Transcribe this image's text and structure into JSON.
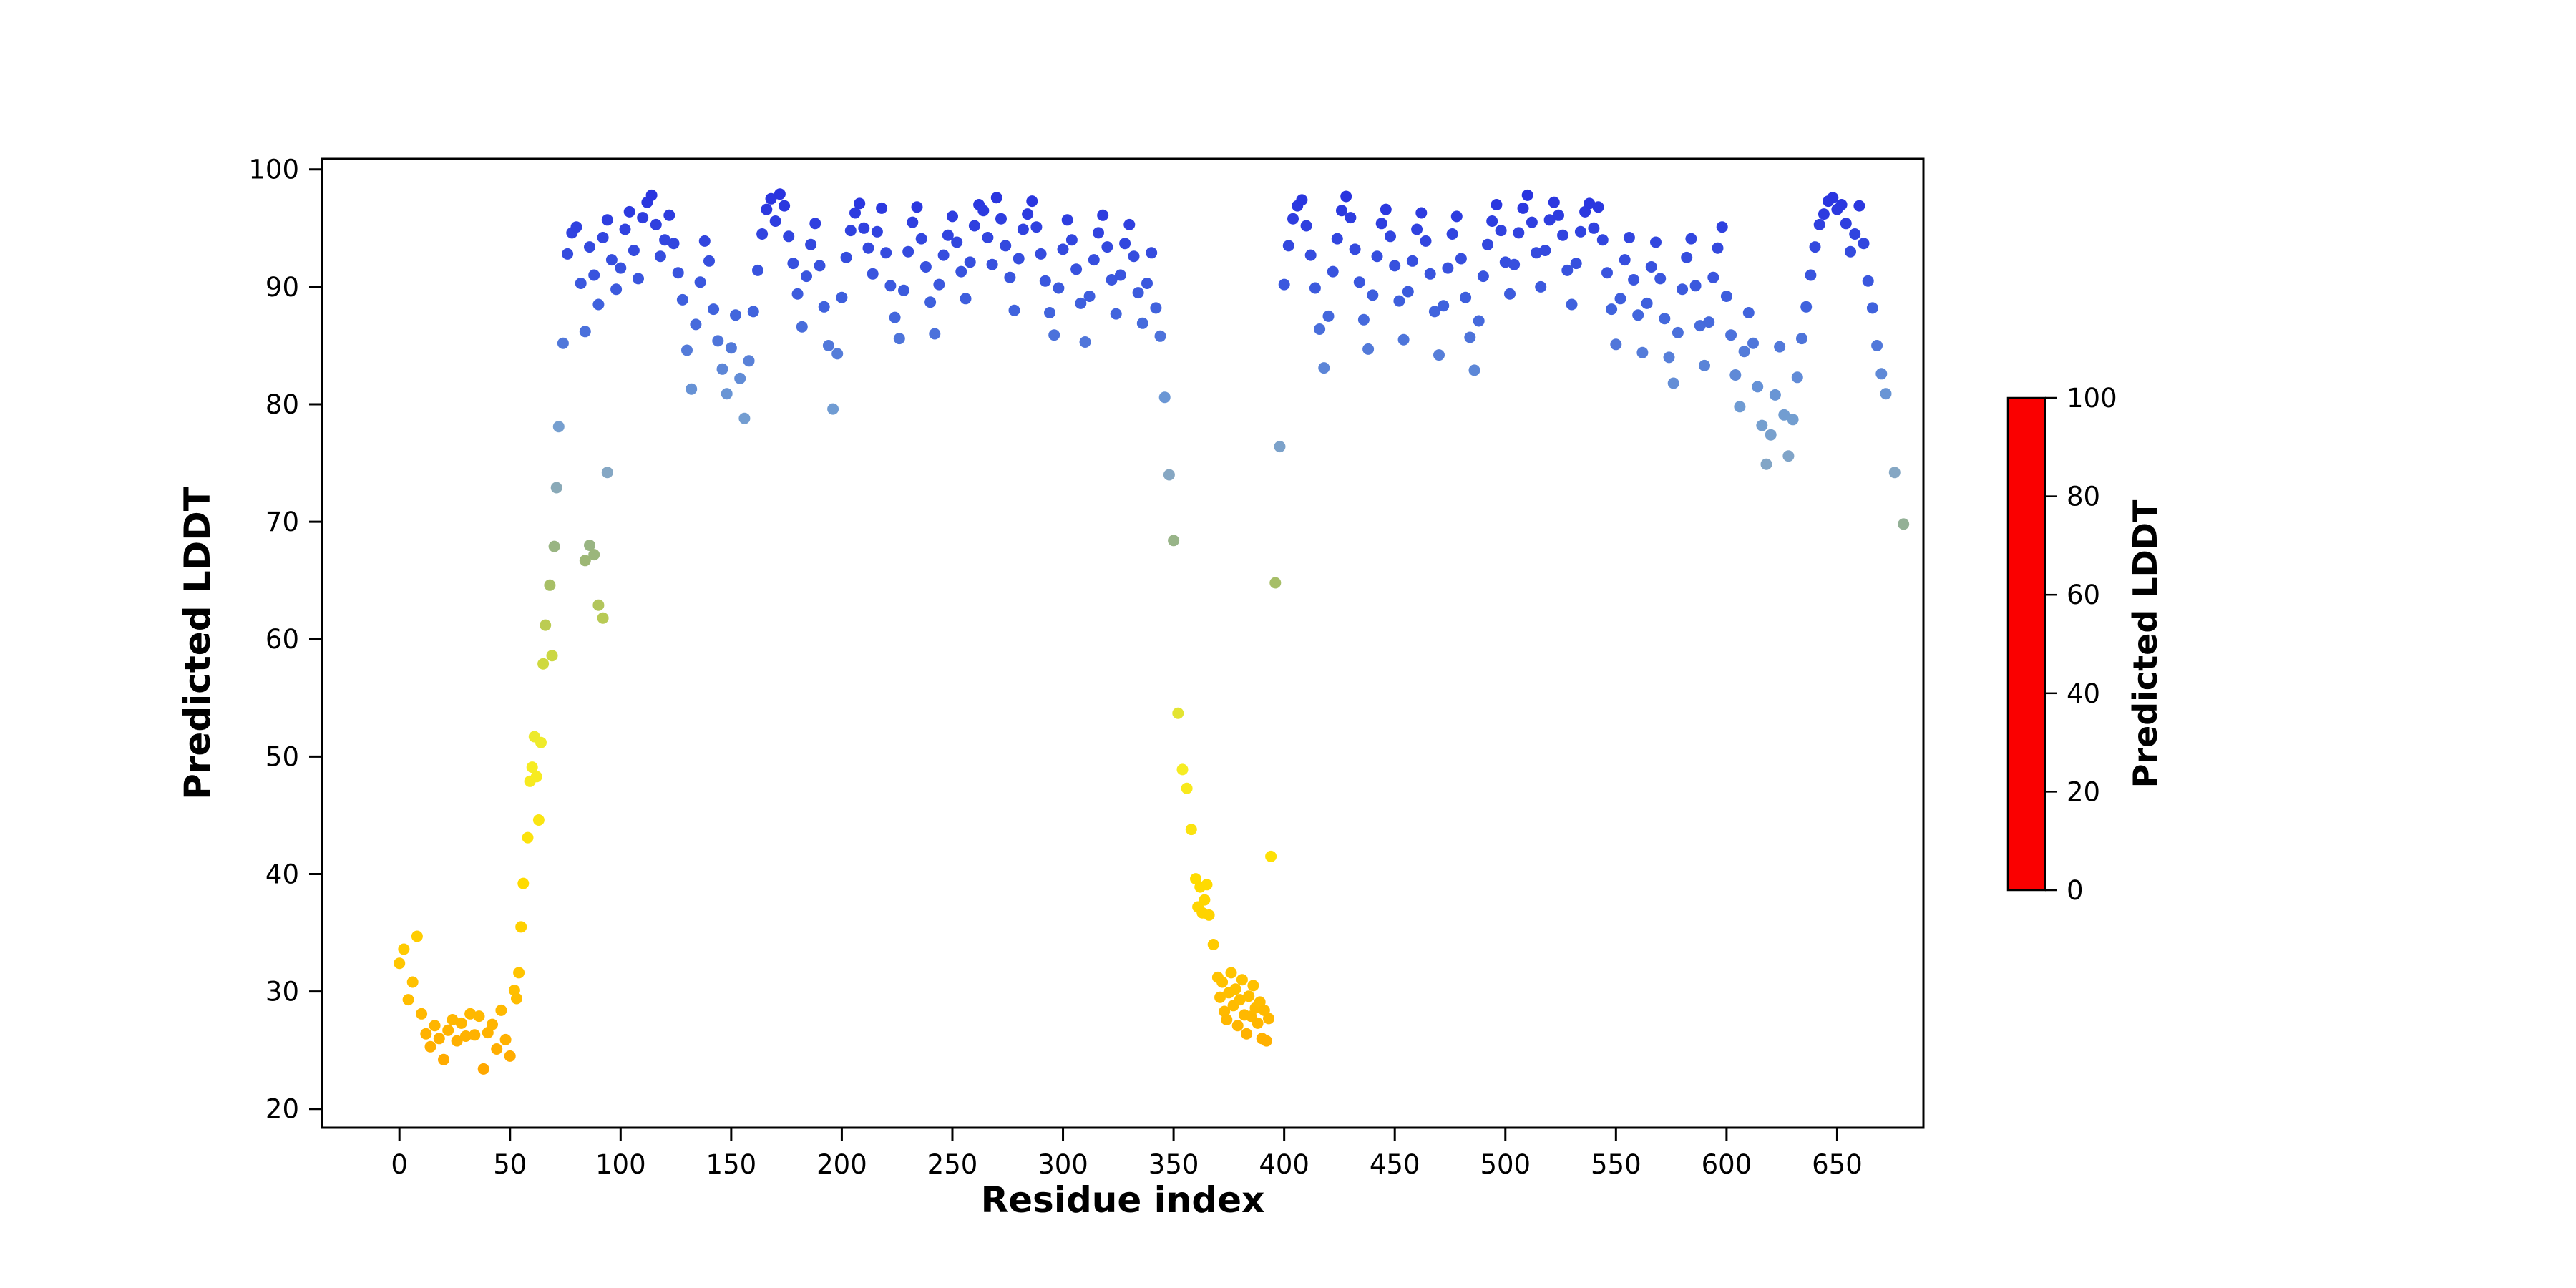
{
  "figure": {
    "background": "#ffffff",
    "spine_color": "#000000",
    "tick_color": "#000000"
  },
  "chart_data": {
    "type": "scatter",
    "title": "",
    "xlabel": "Residue index",
    "ylabel": "Predicted LDDT",
    "xlim": [
      -35,
      689
    ],
    "ylim": [
      18.4,
      100.9
    ],
    "xticks": [
      0,
      50,
      100,
      150,
      200,
      250,
      300,
      350,
      400,
      450,
      500,
      550,
      600,
      650
    ],
    "yticks": [
      20,
      30,
      40,
      50,
      60,
      70,
      80,
      90,
      100
    ],
    "grid": false,
    "legend": "none",
    "marker_size": 8,
    "color_by": "y",
    "colorbar": {
      "label": "Predicted LDDT",
      "ticks": [
        0,
        20,
        40,
        60,
        80,
        100
      ],
      "vmin": 0,
      "vmax": 100,
      "stops": [
        [
          0.0,
          "#fa0000"
        ],
        [
          0.1,
          "#ff5a00"
        ],
        [
          0.2,
          "#ff9c00"
        ],
        [
          0.3,
          "#ffbf00"
        ],
        [
          0.4,
          "#ffdd00"
        ],
        [
          0.5,
          "#f5ee27"
        ],
        [
          0.58,
          "#cfd93f"
        ],
        [
          0.66,
          "#9fb96e"
        ],
        [
          0.74,
          "#86a7c3"
        ],
        [
          0.8,
          "#6e9bd4"
        ],
        [
          0.88,
          "#4063dd"
        ],
        [
          1.0,
          "#2429e0"
        ]
      ]
    },
    "points": [
      [
        0,
        32.4
      ],
      [
        2,
        33.6
      ],
      [
        4,
        29.3
      ],
      [
        6,
        30.8
      ],
      [
        8,
        34.7
      ],
      [
        10,
        28.1
      ],
      [
        12,
        26.4
      ],
      [
        14,
        25.3
      ],
      [
        16,
        27.1
      ],
      [
        18,
        26.0
      ],
      [
        20,
        24.2
      ],
      [
        22,
        26.7
      ],
      [
        24,
        27.6
      ],
      [
        26,
        25.8
      ],
      [
        28,
        27.3
      ],
      [
        30,
        26.2
      ],
      [
        32,
        28.1
      ],
      [
        34,
        26.3
      ],
      [
        36,
        27.9
      ],
      [
        38,
        23.4
      ],
      [
        40,
        26.5
      ],
      [
        42,
        27.2
      ],
      [
        44,
        25.1
      ],
      [
        46,
        28.4
      ],
      [
        48,
        25.9
      ],
      [
        50,
        24.5
      ],
      [
        52,
        30.1
      ],
      [
        53,
        29.4
      ],
      [
        54,
        31.6
      ],
      [
        55,
        35.5
      ],
      [
        56,
        39.2
      ],
      [
        58,
        43.1
      ],
      [
        59,
        47.9
      ],
      [
        60,
        49.1
      ],
      [
        61,
        51.7
      ],
      [
        62,
        48.3
      ],
      [
        63,
        44.6
      ],
      [
        64,
        51.2
      ],
      [
        65,
        57.9
      ],
      [
        66,
        61.2
      ],
      [
        68,
        64.6
      ],
      [
        69,
        58.6
      ],
      [
        70,
        67.9
      ],
      [
        71,
        72.9
      ],
      [
        72,
        78.1
      ],
      [
        74,
        85.2
      ],
      [
        76,
        92.8
      ],
      [
        78,
        94.6
      ],
      [
        80,
        95.1
      ],
      [
        82,
        90.3
      ],
      [
        84,
        86.2
      ],
      [
        84,
        66.7
      ],
      [
        86,
        93.4
      ],
      [
        86,
        68.0
      ],
      [
        88,
        91.0
      ],
      [
        88,
        67.2
      ],
      [
        90,
        88.5
      ],
      [
        90,
        62.9
      ],
      [
        92,
        94.2
      ],
      [
        92,
        61.8
      ],
      [
        94,
        95.7
      ],
      [
        94,
        74.2
      ],
      [
        96,
        92.3
      ],
      [
        98,
        89.8
      ],
      [
        100,
        91.6
      ],
      [
        102,
        94.9
      ],
      [
        104,
        96.4
      ],
      [
        106,
        93.1
      ],
      [
        108,
        90.7
      ],
      [
        110,
        95.9
      ],
      [
        112,
        97.2
      ],
      [
        114,
        97.8
      ],
      [
        116,
        95.3
      ],
      [
        118,
        92.6
      ],
      [
        120,
        94.0
      ],
      [
        122,
        96.1
      ],
      [
        124,
        93.7
      ],
      [
        126,
        91.2
      ],
      [
        128,
        88.9
      ],
      [
        130,
        84.6
      ],
      [
        132,
        81.3
      ],
      [
        134,
        86.8
      ],
      [
        136,
        90.4
      ],
      [
        138,
        93.9
      ],
      [
        140,
        92.2
      ],
      [
        142,
        88.1
      ],
      [
        144,
        85.4
      ],
      [
        146,
        83.0
      ],
      [
        148,
        80.9
      ],
      [
        150,
        84.8
      ],
      [
        152,
        87.6
      ],
      [
        154,
        82.2
      ],
      [
        156,
        78.8
      ],
      [
        158,
        83.7
      ],
      [
        160,
        87.9
      ],
      [
        162,
        91.4
      ],
      [
        164,
        94.5
      ],
      [
        166,
        96.6
      ],
      [
        168,
        97.5
      ],
      [
        170,
        95.6
      ],
      [
        172,
        97.9
      ],
      [
        174,
        96.9
      ],
      [
        176,
        94.3
      ],
      [
        178,
        92.0
      ],
      [
        180,
        89.4
      ],
      [
        182,
        86.6
      ],
      [
        184,
        90.9
      ],
      [
        186,
        93.6
      ],
      [
        188,
        95.4
      ],
      [
        190,
        91.8
      ],
      [
        192,
        88.3
      ],
      [
        194,
        85.0
      ],
      [
        196,
        79.6
      ],
      [
        198,
        84.3
      ],
      [
        200,
        89.1
      ],
      [
        202,
        92.5
      ],
      [
        204,
        94.8
      ],
      [
        206,
        96.3
      ],
      [
        208,
        97.1
      ],
      [
        210,
        95.0
      ],
      [
        212,
        93.3
      ],
      [
        214,
        91.1
      ],
      [
        216,
        94.7
      ],
      [
        218,
        96.7
      ],
      [
        220,
        92.9
      ],
      [
        222,
        90.1
      ],
      [
        224,
        87.4
      ],
      [
        226,
        85.6
      ],
      [
        228,
        89.7
      ],
      [
        230,
        93.0
      ],
      [
        232,
        95.5
      ],
      [
        234,
        96.8
      ],
      [
        236,
        94.1
      ],
      [
        238,
        91.7
      ],
      [
        240,
        88.7
      ],
      [
        242,
        86.0
      ],
      [
        244,
        90.2
      ],
      [
        246,
        92.7
      ],
      [
        248,
        94.4
      ],
      [
        250,
        96.0
      ],
      [
        252,
        93.8
      ],
      [
        254,
        91.3
      ],
      [
        256,
        89.0
      ],
      [
        258,
        92.1
      ],
      [
        260,
        95.2
      ],
      [
        262,
        97.0
      ],
      [
        264,
        96.5
      ],
      [
        266,
        94.2
      ],
      [
        268,
        91.9
      ],
      [
        270,
        97.6
      ],
      [
        272,
        95.8
      ],
      [
        274,
        93.5
      ],
      [
        276,
        90.8
      ],
      [
        278,
        88.0
      ],
      [
        280,
        92.4
      ],
      [
        282,
        94.9
      ],
      [
        284,
        96.2
      ],
      [
        286,
        97.3
      ],
      [
        288,
        95.1
      ],
      [
        290,
        92.8
      ],
      [
        292,
        90.5
      ],
      [
        294,
        87.8
      ],
      [
        296,
        85.9
      ],
      [
        298,
        89.9
      ],
      [
        300,
        93.2
      ],
      [
        302,
        95.7
      ],
      [
        304,
        94.0
      ],
      [
        306,
        91.5
      ],
      [
        308,
        88.6
      ],
      [
        310,
        85.3
      ],
      [
        312,
        89.2
      ],
      [
        314,
        92.3
      ],
      [
        316,
        94.6
      ],
      [
        318,
        96.1
      ],
      [
        320,
        93.4
      ],
      [
        322,
        90.6
      ],
      [
        324,
        87.7
      ],
      [
        326,
        91.0
      ],
      [
        328,
        93.7
      ],
      [
        330,
        95.3
      ],
      [
        332,
        92.6
      ],
      [
        334,
        89.5
      ],
      [
        336,
        86.9
      ],
      [
        338,
        90.3
      ],
      [
        340,
        92.9
      ],
      [
        342,
        88.2
      ],
      [
        344,
        85.8
      ],
      [
        346,
        80.6
      ],
      [
        348,
        74.0
      ],
      [
        350,
        68.4
      ],
      [
        352,
        53.7
      ],
      [
        354,
        48.9
      ],
      [
        356,
        47.3
      ],
      [
        358,
        43.8
      ],
      [
        360,
        39.6
      ],
      [
        361,
        37.2
      ],
      [
        362,
        38.9
      ],
      [
        363,
        36.7
      ],
      [
        364,
        37.8
      ],
      [
        365,
        39.1
      ],
      [
        366,
        36.5
      ],
      [
        368,
        34.0
      ],
      [
        370,
        31.2
      ],
      [
        371,
        29.5
      ],
      [
        372,
        30.8
      ],
      [
        373,
        28.3
      ],
      [
        374,
        27.6
      ],
      [
        375,
        29.9
      ],
      [
        376,
        31.6
      ],
      [
        377,
        28.8
      ],
      [
        378,
        30.2
      ],
      [
        379,
        27.1
      ],
      [
        380,
        29.3
      ],
      [
        381,
        31.0
      ],
      [
        382,
        28.0
      ],
      [
        383,
        26.4
      ],
      [
        384,
        29.6
      ],
      [
        385,
        27.9
      ],
      [
        386,
        30.5
      ],
      [
        387,
        28.6
      ],
      [
        388,
        27.3
      ],
      [
        389,
        29.1
      ],
      [
        390,
        26.0
      ],
      [
        391,
        28.4
      ],
      [
        392,
        25.8
      ],
      [
        393,
        27.7
      ],
      [
        394,
        41.5
      ],
      [
        396,
        64.8
      ],
      [
        398,
        76.4
      ],
      [
        400,
        90.2
      ],
      [
        402,
        93.5
      ],
      [
        404,
        95.8
      ],
      [
        406,
        96.9
      ],
      [
        408,
        97.4
      ],
      [
        410,
        95.2
      ],
      [
        412,
        92.7
      ],
      [
        414,
        89.9
      ],
      [
        416,
        86.4
      ],
      [
        418,
        83.1
      ],
      [
        420,
        87.5
      ],
      [
        422,
        91.3
      ],
      [
        424,
        94.1
      ],
      [
        426,
        96.5
      ],
      [
        428,
        97.7
      ],
      [
        430,
        95.9
      ],
      [
        432,
        93.2
      ],
      [
        434,
        90.4
      ],
      [
        436,
        87.2
      ],
      [
        438,
        84.7
      ],
      [
        440,
        89.3
      ],
      [
        442,
        92.6
      ],
      [
        444,
        95.4
      ],
      [
        446,
        96.6
      ],
      [
        448,
        94.3
      ],
      [
        450,
        91.8
      ],
      [
        452,
        88.8
      ],
      [
        454,
        85.5
      ],
      [
        456,
        89.6
      ],
      [
        458,
        92.2
      ],
      [
        460,
        94.9
      ],
      [
        462,
        96.3
      ],
      [
        464,
        93.9
      ],
      [
        466,
        91.1
      ],
      [
        468,
        87.9
      ],
      [
        470,
        84.2
      ],
      [
        472,
        88.4
      ],
      [
        474,
        91.6
      ],
      [
        476,
        94.5
      ],
      [
        478,
        96.0
      ],
      [
        480,
        92.4
      ],
      [
        482,
        89.1
      ],
      [
        484,
        85.7
      ],
      [
        486,
        82.9
      ],
      [
        488,
        87.1
      ],
      [
        490,
        90.9
      ],
      [
        492,
        93.6
      ],
      [
        494,
        95.6
      ],
      [
        496,
        97.0
      ],
      [
        498,
        94.8
      ],
      [
        500,
        92.1
      ],
      [
        502,
        89.4
      ],
      [
        504,
        91.9
      ],
      [
        506,
        94.6
      ],
      [
        508,
        96.7
      ],
      [
        510,
        97.8
      ],
      [
        512,
        95.5
      ],
      [
        514,
        92.9
      ],
      [
        516,
        90.0
      ],
      [
        518,
        93.1
      ],
      [
        520,
        95.7
      ],
      [
        522,
        97.2
      ],
      [
        524,
        96.1
      ],
      [
        526,
        94.4
      ],
      [
        528,
        91.4
      ],
      [
        530,
        88.5
      ],
      [
        532,
        92.0
      ],
      [
        534,
        94.7
      ],
      [
        536,
        96.4
      ],
      [
        538,
        97.1
      ],
      [
        540,
        95.0
      ],
      [
        542,
        96.8
      ],
      [
        544,
        94.0
      ],
      [
        546,
        91.2
      ],
      [
        548,
        88.1
      ],
      [
        550,
        85.1
      ],
      [
        552,
        89.0
      ],
      [
        554,
        92.3
      ],
      [
        556,
        94.2
      ],
      [
        558,
        90.6
      ],
      [
        560,
        87.6
      ],
      [
        562,
        84.4
      ],
      [
        564,
        88.6
      ],
      [
        566,
        91.7
      ],
      [
        568,
        93.8
      ],
      [
        570,
        90.7
      ],
      [
        572,
        87.3
      ],
      [
        574,
        84.0
      ],
      [
        576,
        81.8
      ],
      [
        578,
        86.1
      ],
      [
        580,
        89.8
      ],
      [
        582,
        92.5
      ],
      [
        584,
        94.1
      ],
      [
        586,
        90.1
      ],
      [
        588,
        86.7
      ],
      [
        590,
        83.3
      ],
      [
        592,
        87.0
      ],
      [
        594,
        90.8
      ],
      [
        596,
        93.3
      ],
      [
        598,
        95.1
      ],
      [
        600,
        89.2
      ],
      [
        602,
        85.9
      ],
      [
        604,
        82.5
      ],
      [
        606,
        79.8
      ],
      [
        608,
        84.5
      ],
      [
        610,
        87.8
      ],
      [
        612,
        85.2
      ],
      [
        614,
        81.5
      ],
      [
        616,
        78.2
      ],
      [
        618,
        74.9
      ],
      [
        620,
        77.4
      ],
      [
        622,
        80.8
      ],
      [
        624,
        84.9
      ],
      [
        626,
        79.1
      ],
      [
        628,
        75.6
      ],
      [
        630,
        78.7
      ],
      [
        632,
        82.3
      ],
      [
        634,
        85.6
      ],
      [
        636,
        88.3
      ],
      [
        638,
        91.0
      ],
      [
        640,
        93.4
      ],
      [
        642,
        95.3
      ],
      [
        644,
        96.2
      ],
      [
        646,
        97.3
      ],
      [
        648,
        97.6
      ],
      [
        650,
        96.6
      ],
      [
        652,
        97.0
      ],
      [
        654,
        95.4
      ],
      [
        656,
        93.0
      ],
      [
        658,
        94.5
      ],
      [
        660,
        96.9
      ],
      [
        662,
        93.7
      ],
      [
        664,
        90.5
      ],
      [
        666,
        88.2
      ],
      [
        668,
        85.0
      ],
      [
        670,
        82.6
      ],
      [
        672,
        80.9
      ],
      [
        676,
        74.2
      ],
      [
        680,
        69.8
      ]
    ]
  }
}
